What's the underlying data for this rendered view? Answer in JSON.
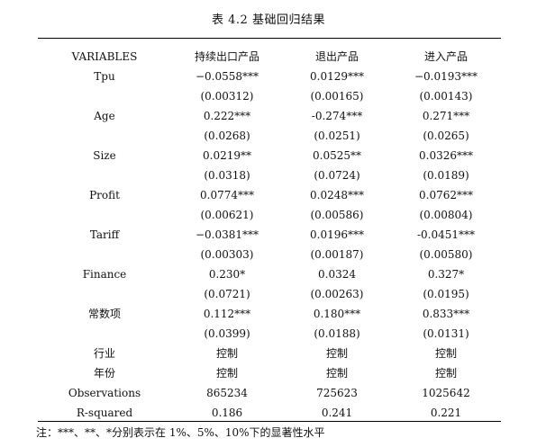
{
  "caption": "表 4.2  基础回归结果",
  "header": [
    "VARIABLES",
    "持续出口产品",
    "退出产品",
    "进入产品"
  ],
  "rows": [
    [
      "Tpu",
      "−0.0558***",
      "0.0129***",
      "−0.0193***"
    ],
    [
      "",
      "(0.00312)",
      "(0.00165)",
      "(0.00143)"
    ],
    [
      "Age",
      "0.222***",
      "-0.274***",
      "0.271***"
    ],
    [
      "",
      "(0.0268)",
      "(0.0251)",
      "(0.0265)"
    ],
    [
      "Size",
      "0.0219**",
      "0.0525**",
      "0.0326***"
    ],
    [
      "",
      "(0.0318)",
      "(0.0724)",
      "(0.0189)"
    ],
    [
      "Profit",
      "0.0774***",
      "0.0248***",
      "0.0762***"
    ],
    [
      "",
      "(0.00621)",
      "(0.00586)",
      "(0.00804)"
    ],
    [
      "Tariff",
      "−0.0381***",
      "0.0196***",
      "-0.0451***"
    ],
    [
      "",
      "(0.00303)",
      "(0.00187)",
      "(0.00580)"
    ],
    [
      "Finance",
      "0.230*",
      "0.0324",
      "0.327*"
    ],
    [
      "",
      "(0.0721)",
      "(0.00263)",
      "(0.0195)"
    ],
    [
      "常数项",
      "0.112***",
      "0.180***",
      "0.833***"
    ],
    [
      "",
      "(0.0399)",
      "(0.0188)",
      "(0.0131)"
    ],
    [
      "行业",
      "控制",
      "控制",
      "控制"
    ],
    [
      "年份",
      "控制",
      "控制",
      "控制"
    ],
    [
      "Observations",
      "865234",
      "725623",
      "1025642"
    ],
    [
      "R-squared",
      "0.186",
      "0.241",
      "0.221"
    ]
  ],
  "note": "注：***、**、*分别表示在 1%、5%、10%下的显著性水平"
}
